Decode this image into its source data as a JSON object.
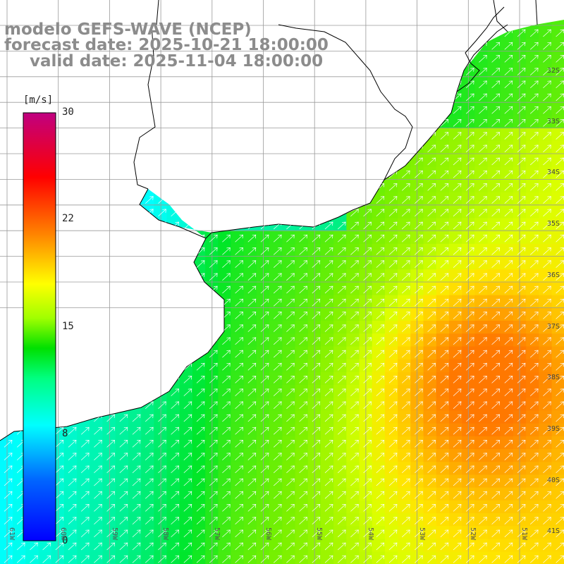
{
  "titles": {
    "line1": "modelo GEFS-WAVE (NCEP)",
    "line2": "forecast date: 2025-10-21 18:00:00",
    "line3": "valid date: 2025-11-04 18:00:00"
  },
  "colorbar": {
    "unit": "[m/s]",
    "ticks": [
      "30",
      "22",
      "15",
      "8",
      "0"
    ],
    "tick_values": [
      30,
      22,
      15,
      8,
      0
    ],
    "range": [
      0,
      30
    ],
    "colors": [
      "#0000ff",
      "#00c8ff",
      "#00ffff",
      "#00ff40",
      "#00e000",
      "#80ff00",
      "#ffff00",
      "#ff8000",
      "#ff0000",
      "#e0006a",
      "#c00080"
    ]
  },
  "map": {
    "lat_labels": [
      "32S",
      "33S",
      "34S",
      "35S",
      "36S",
      "37S",
      "38S",
      "39S",
      "40S",
      "41S"
    ],
    "lon_labels": [
      "61W",
      "60W",
      "59W",
      "58W",
      "57W",
      "56W",
      "55W",
      "54W",
      "53W",
      "52W",
      "51W"
    ],
    "lon_range": [
      -61.5,
      -50.5
    ],
    "lat_range": [
      -41.5,
      -31.0
    ],
    "grid": true,
    "field": "wind speed with direction arrows",
    "arrow_direction": "towards northeast"
  }
}
